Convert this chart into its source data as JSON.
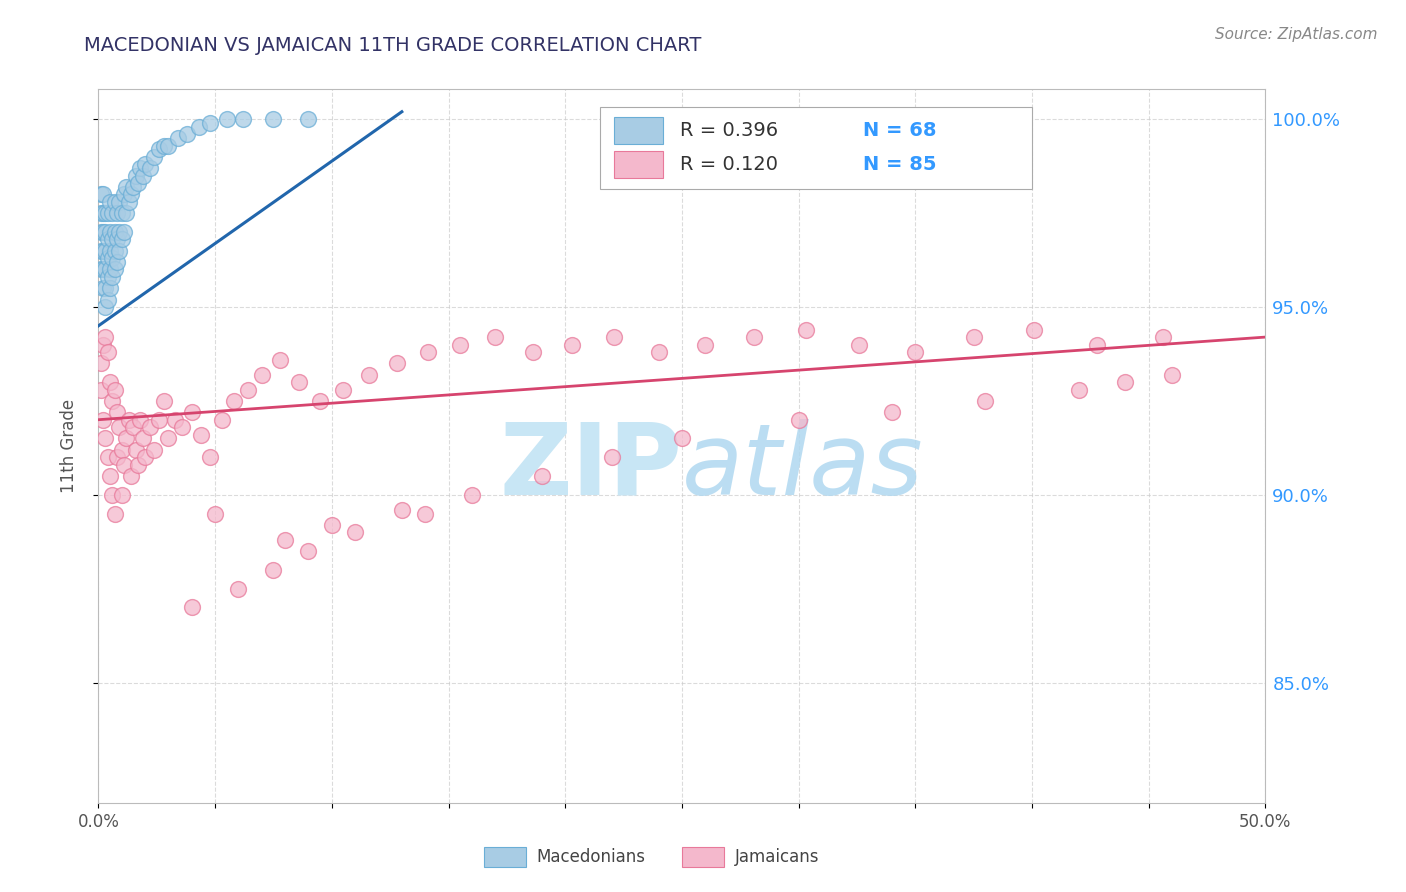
{
  "title": "MACEDONIAN VS JAMAICAN 11TH GRADE CORRELATION CHART",
  "source_text": "Source: ZipAtlas.com",
  "ylabel": "11th Grade",
  "xlim": [
    0.0,
    0.5
  ],
  "ylim": [
    0.818,
    1.008
  ],
  "xticks": [
    0.0,
    0.05,
    0.1,
    0.15,
    0.2,
    0.25,
    0.3,
    0.35,
    0.4,
    0.45,
    0.5
  ],
  "xticklabels": [
    "0.0%",
    "",
    "",
    "",
    "",
    "",
    "",
    "",
    "",
    "",
    "50.0%"
  ],
  "yticks": [
    0.85,
    0.9,
    0.95,
    1.0
  ],
  "yticklabels": [
    "85.0%",
    "90.0%",
    "95.0%",
    "100.0%"
  ],
  "macedonian_color": "#a8cce4",
  "jamaican_color": "#f4b8cc",
  "macedonian_edge_color": "#6aaed6",
  "jamaican_edge_color": "#e8799a",
  "macedonian_line_color": "#2166ac",
  "jamaican_line_color": "#d6446e",
  "legend_label_macedonian": "Macedonians",
  "legend_label_jamaican": "Jamaicans",
  "background_color": "#ffffff",
  "grid_color": "#cccccc",
  "watermark_color": "#c8e6f5",
  "macedonian_x": [
    0.001,
    0.001,
    0.001,
    0.001,
    0.001,
    0.002,
    0.002,
    0.002,
    0.002,
    0.002,
    0.002,
    0.003,
    0.003,
    0.003,
    0.003,
    0.003,
    0.003,
    0.004,
    0.004,
    0.004,
    0.004,
    0.004,
    0.005,
    0.005,
    0.005,
    0.005,
    0.005,
    0.006,
    0.006,
    0.006,
    0.006,
    0.007,
    0.007,
    0.007,
    0.007,
    0.008,
    0.008,
    0.008,
    0.009,
    0.009,
    0.009,
    0.01,
    0.01,
    0.011,
    0.011,
    0.012,
    0.012,
    0.013,
    0.014,
    0.015,
    0.016,
    0.017,
    0.018,
    0.019,
    0.02,
    0.022,
    0.024,
    0.026,
    0.028,
    0.03,
    0.034,
    0.038,
    0.043,
    0.048,
    0.055,
    0.062,
    0.075,
    0.09
  ],
  "macedonian_y": [
    0.96,
    0.965,
    0.97,
    0.975,
    0.98,
    0.955,
    0.96,
    0.965,
    0.97,
    0.975,
    0.98,
    0.95,
    0.955,
    0.96,
    0.965,
    0.97,
    0.975,
    0.952,
    0.958,
    0.963,
    0.968,
    0.975,
    0.955,
    0.96,
    0.965,
    0.97,
    0.978,
    0.958,
    0.963,
    0.968,
    0.975,
    0.96,
    0.965,
    0.97,
    0.978,
    0.962,
    0.968,
    0.975,
    0.965,
    0.97,
    0.978,
    0.968,
    0.975,
    0.97,
    0.98,
    0.975,
    0.982,
    0.978,
    0.98,
    0.982,
    0.985,
    0.983,
    0.987,
    0.985,
    0.988,
    0.987,
    0.99,
    0.992,
    0.993,
    0.993,
    0.995,
    0.996,
    0.998,
    0.999,
    1.0,
    1.0,
    1.0,
    1.0
  ],
  "jamaican_x": [
    0.001,
    0.001,
    0.002,
    0.002,
    0.003,
    0.003,
    0.004,
    0.004,
    0.005,
    0.005,
    0.006,
    0.006,
    0.007,
    0.007,
    0.008,
    0.008,
    0.009,
    0.01,
    0.01,
    0.011,
    0.012,
    0.013,
    0.014,
    0.015,
    0.016,
    0.017,
    0.018,
    0.019,
    0.02,
    0.022,
    0.024,
    0.026,
    0.028,
    0.03,
    0.033,
    0.036,
    0.04,
    0.044,
    0.048,
    0.053,
    0.058,
    0.064,
    0.07,
    0.078,
    0.086,
    0.095,
    0.105,
    0.116,
    0.128,
    0.141,
    0.155,
    0.17,
    0.186,
    0.203,
    0.221,
    0.24,
    0.26,
    0.281,
    0.303,
    0.326,
    0.35,
    0.375,
    0.401,
    0.428,
    0.456,
    0.05,
    0.08,
    0.1,
    0.13,
    0.16,
    0.19,
    0.22,
    0.25,
    0.3,
    0.34,
    0.38,
    0.42,
    0.44,
    0.46,
    0.04,
    0.06,
    0.075,
    0.09,
    0.11,
    0.14
  ],
  "jamaican_y": [
    0.935,
    0.928,
    0.94,
    0.92,
    0.942,
    0.915,
    0.938,
    0.91,
    0.93,
    0.905,
    0.925,
    0.9,
    0.928,
    0.895,
    0.922,
    0.91,
    0.918,
    0.912,
    0.9,
    0.908,
    0.915,
    0.92,
    0.905,
    0.918,
    0.912,
    0.908,
    0.92,
    0.915,
    0.91,
    0.918,
    0.912,
    0.92,
    0.925,
    0.915,
    0.92,
    0.918,
    0.922,
    0.916,
    0.91,
    0.92,
    0.925,
    0.928,
    0.932,
    0.936,
    0.93,
    0.925,
    0.928,
    0.932,
    0.935,
    0.938,
    0.94,
    0.942,
    0.938,
    0.94,
    0.942,
    0.938,
    0.94,
    0.942,
    0.944,
    0.94,
    0.938,
    0.942,
    0.944,
    0.94,
    0.942,
    0.895,
    0.888,
    0.892,
    0.896,
    0.9,
    0.905,
    0.91,
    0.915,
    0.92,
    0.922,
    0.925,
    0.928,
    0.93,
    0.932,
    0.87,
    0.875,
    0.88,
    0.885,
    0.89,
    0.895
  ],
  "macedonian_trendline_x": [
    0.0,
    0.13
  ],
  "macedonian_trendline_y": [
    0.945,
    1.002
  ],
  "jamaican_trendline_x": [
    0.0,
    0.5
  ],
  "jamaican_trendline_y": [
    0.92,
    0.942
  ]
}
